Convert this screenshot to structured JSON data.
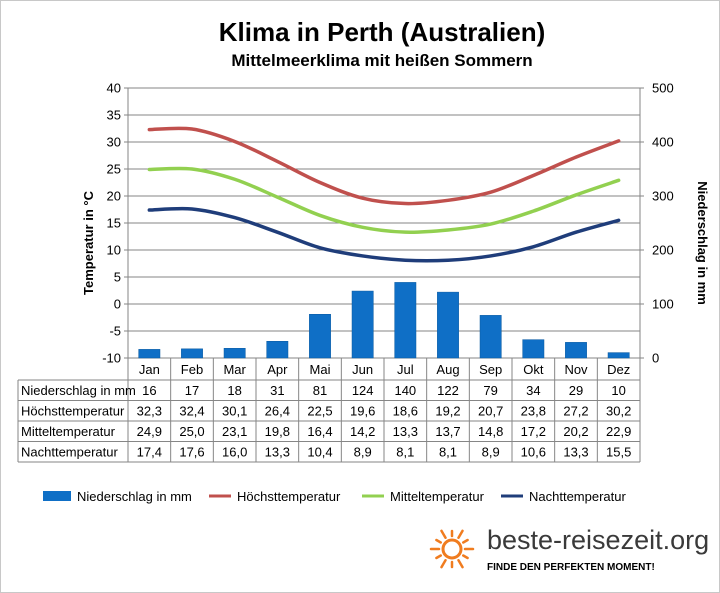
{
  "title": "Klima in Perth (Australien)",
  "subtitle": "Mittelmeerklima mit heißen Sommern",
  "brand": {
    "name": "beste-reisezeit.org",
    "tagline": "FINDE DEN PERFEKTEN MOMENT!",
    "accent": "#f07c1f"
  },
  "colors": {
    "bars": "#0f6fc6",
    "max": "#c0504d",
    "mean": "#92d050",
    "night": "#1f3d7a",
    "grid": "#868686"
  },
  "chart_data": {
    "type": "bar+line",
    "categories": [
      "Jan",
      "Feb",
      "Mar",
      "Apr",
      "Mai",
      "Jun",
      "Jul",
      "Aug",
      "Sep",
      "Okt",
      "Nov",
      "Dez"
    ],
    "y_left": {
      "label": "Temperatur in °C",
      "min": -10,
      "max": 40,
      "ticks": [
        "40",
        "35",
        "30",
        "25",
        "20",
        "15",
        "10",
        "5",
        "0",
        "-5",
        "-10"
      ]
    },
    "y_right": {
      "label": "Niederschlag in mm",
      "min": 0,
      "max": 500,
      "ticks": [
        "500",
        "400",
        "300",
        "200",
        "100",
        "0"
      ]
    },
    "series": [
      {
        "name": "Niederschlag in mm",
        "type": "bar",
        "axis": "right",
        "values": [
          16,
          17,
          18,
          31,
          81,
          124,
          140,
          122,
          79,
          34,
          29,
          10
        ],
        "labels": [
          "16",
          "17",
          "18",
          "31",
          "81",
          "124",
          "140",
          "122",
          "79",
          "34",
          "29",
          "10"
        ]
      },
      {
        "name": "Höchsttemperatur",
        "type": "line",
        "axis": "left",
        "values": [
          32.3,
          32.4,
          30.1,
          26.4,
          22.5,
          19.6,
          18.6,
          19.2,
          20.7,
          23.8,
          27.2,
          30.2
        ],
        "labels": [
          "32,3",
          "32,4",
          "30,1",
          "26,4",
          "22,5",
          "19,6",
          "18,6",
          "19,2",
          "20,7",
          "23,8",
          "27,2",
          "30,2"
        ]
      },
      {
        "name": "Mitteltemperatur",
        "type": "line",
        "axis": "left",
        "values": [
          24.9,
          25.0,
          23.1,
          19.8,
          16.4,
          14.2,
          13.3,
          13.7,
          14.8,
          17.2,
          20.2,
          22.9
        ],
        "labels": [
          "24,9",
          "25,0",
          "23,1",
          "19,8",
          "16,4",
          "14,2",
          "13,3",
          "13,7",
          "14,8",
          "17,2",
          "20,2",
          "22,9"
        ]
      },
      {
        "name": "Nachttemperatur",
        "type": "line",
        "axis": "left",
        "values": [
          17.4,
          17.6,
          16.0,
          13.3,
          10.4,
          8.9,
          8.1,
          8.1,
          8.9,
          10.6,
          13.3,
          15.5
        ],
        "labels": [
          "17,4",
          "17,6",
          "16,0",
          "13,3",
          "10,4",
          "8,9",
          "8,1",
          "8,1",
          "8,9",
          "10,6",
          "13,3",
          "15,5"
        ]
      }
    ],
    "grid": true,
    "legend": "bottom"
  }
}
